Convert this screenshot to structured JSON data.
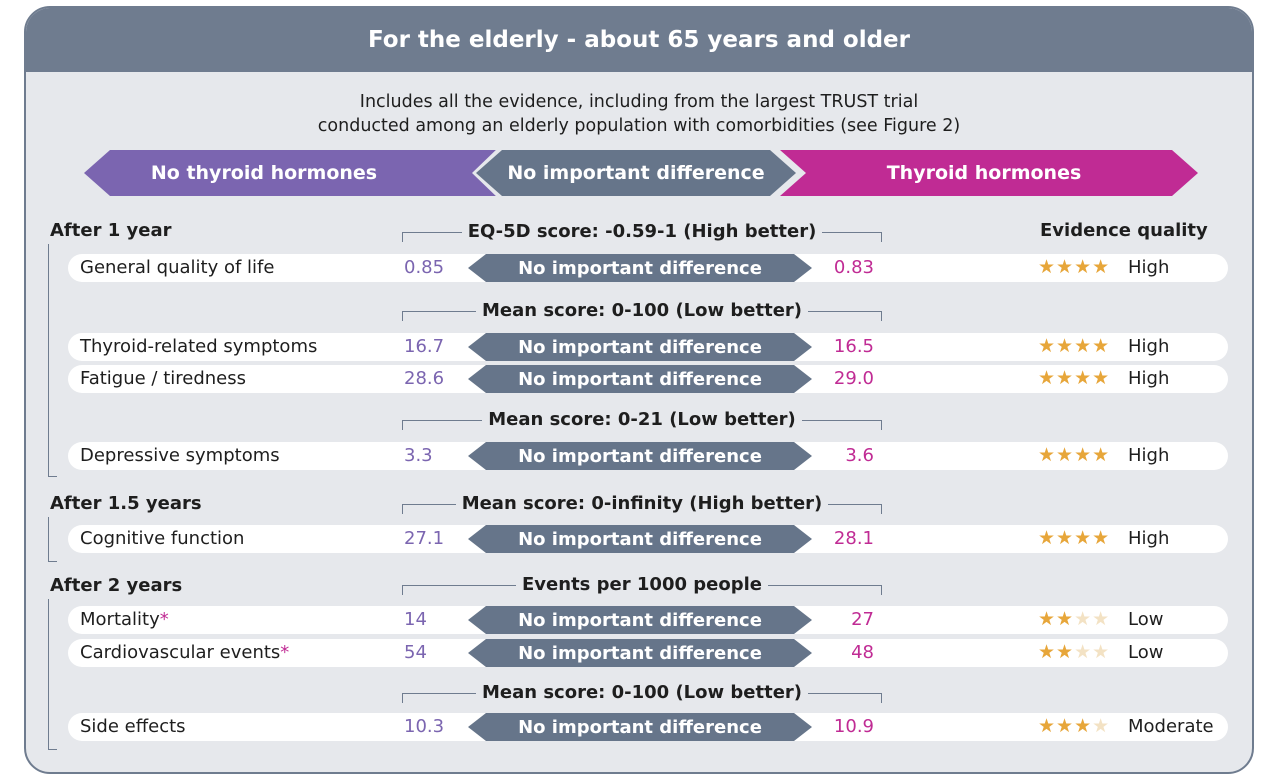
{
  "header": {
    "title": "For the elderly - about 65 years and older"
  },
  "subtitle": {
    "line1": "Includes all the evidence, including from the largest TRUST trial",
    "line2": "conducted among an elderly population with comorbidities (see Figure 2)"
  },
  "arrows": {
    "left": "No thyroid hormones",
    "middle": "No important difference",
    "right": "Thyroid hormones"
  },
  "evidence_header": "Evidence quality",
  "groups": {
    "g1": "After 1 year",
    "g2": "After 1.5 years",
    "g3": "After 2 years"
  },
  "scales": {
    "s1": "EQ-5D score: -0.59-1 (High better)",
    "s2": "Mean score: 0-100 (Low better)",
    "s3": "Mean score: 0-21 (Low better)",
    "s4": "Mean score: 0-infinity (High better)",
    "s5": "Events per 1000 people",
    "s6": "Mean score: 0-100 (Low better)"
  },
  "rows": [
    {
      "label": "General quality of life",
      "asterisk": "",
      "no_thyroid": "0.85",
      "difference": "No important difference",
      "thyroid": "0.83",
      "stars_on": "★★★★",
      "stars_off": "",
      "quality": "High"
    },
    {
      "label": "Thyroid-related symptoms",
      "asterisk": "",
      "no_thyroid": "16.7",
      "difference": "No important difference",
      "thyroid": "16.5",
      "stars_on": "★★★★",
      "stars_off": "",
      "quality": "High"
    },
    {
      "label": "Fatigue / tiredness",
      "asterisk": "",
      "no_thyroid": "28.6",
      "difference": "No important difference",
      "thyroid": "29.0",
      "stars_on": "★★★★",
      "stars_off": "",
      "quality": "High"
    },
    {
      "label": "Depressive symptoms",
      "asterisk": "",
      "no_thyroid": "3.3",
      "difference": "No important difference",
      "thyroid": "3.6",
      "stars_on": "★★★★",
      "stars_off": "",
      "quality": "High"
    },
    {
      "label": "Cognitive function",
      "asterisk": "",
      "no_thyroid": "27.1",
      "difference": "No important difference",
      "thyroid": "28.1",
      "stars_on": "★★★★",
      "stars_off": "",
      "quality": "High"
    },
    {
      "label": "Mortality",
      "asterisk": "*",
      "no_thyroid": "14",
      "difference": "No important difference",
      "thyroid": "27",
      "stars_on": "★★",
      "stars_off": "★★",
      "quality": "Low"
    },
    {
      "label": "Cardiovascular events",
      "asterisk": "*",
      "no_thyroid": "54",
      "difference": "No important difference",
      "thyroid": "48",
      "stars_on": "★★",
      "stars_off": "★★",
      "quality": "Low"
    },
    {
      "label": "Side effects",
      "asterisk": "",
      "no_thyroid": "10.3",
      "difference": "No important difference",
      "thyroid": "10.9",
      "stars_on": "★★★",
      "stars_off": "★",
      "quality": "Moderate"
    }
  ]
}
